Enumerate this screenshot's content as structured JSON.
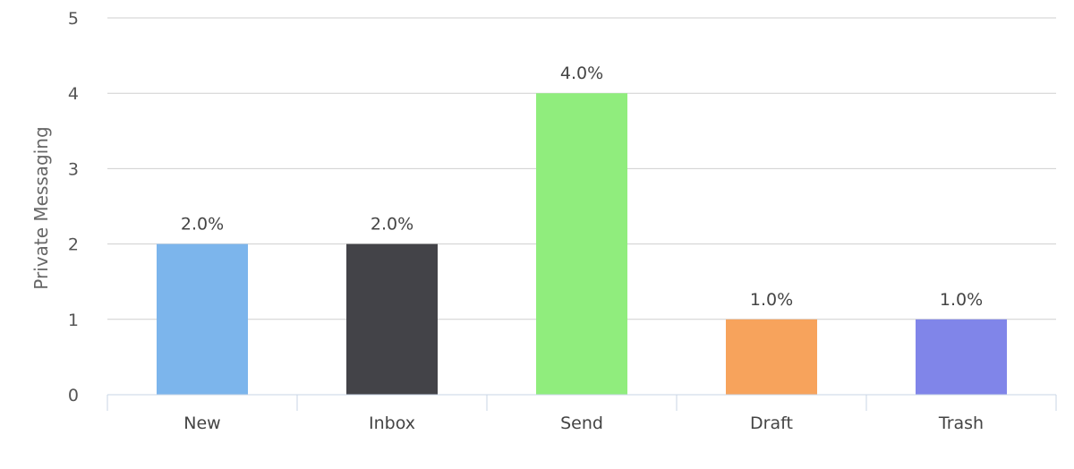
{
  "chart_data": {
    "type": "bar",
    "title": "",
    "xlabel": "",
    "ylabel": "Private Messaging",
    "categories": [
      "New",
      "Inbox",
      "Send",
      "Draft",
      "Trash"
    ],
    "values": [
      2,
      2,
      4,
      1,
      1
    ],
    "data_labels": [
      "2.0%",
      "2.0%",
      "4.0%",
      "1.0%",
      "1.0%"
    ],
    "colors": [
      "#7cb5ec",
      "#434348",
      "#90ed7d",
      "#f7a35c",
      "#8085e9"
    ],
    "ylim": [
      0,
      5
    ],
    "yticks": [
      "0",
      "1",
      "2",
      "3",
      "4",
      "5"
    ],
    "grid": true,
    "legend": "none"
  }
}
